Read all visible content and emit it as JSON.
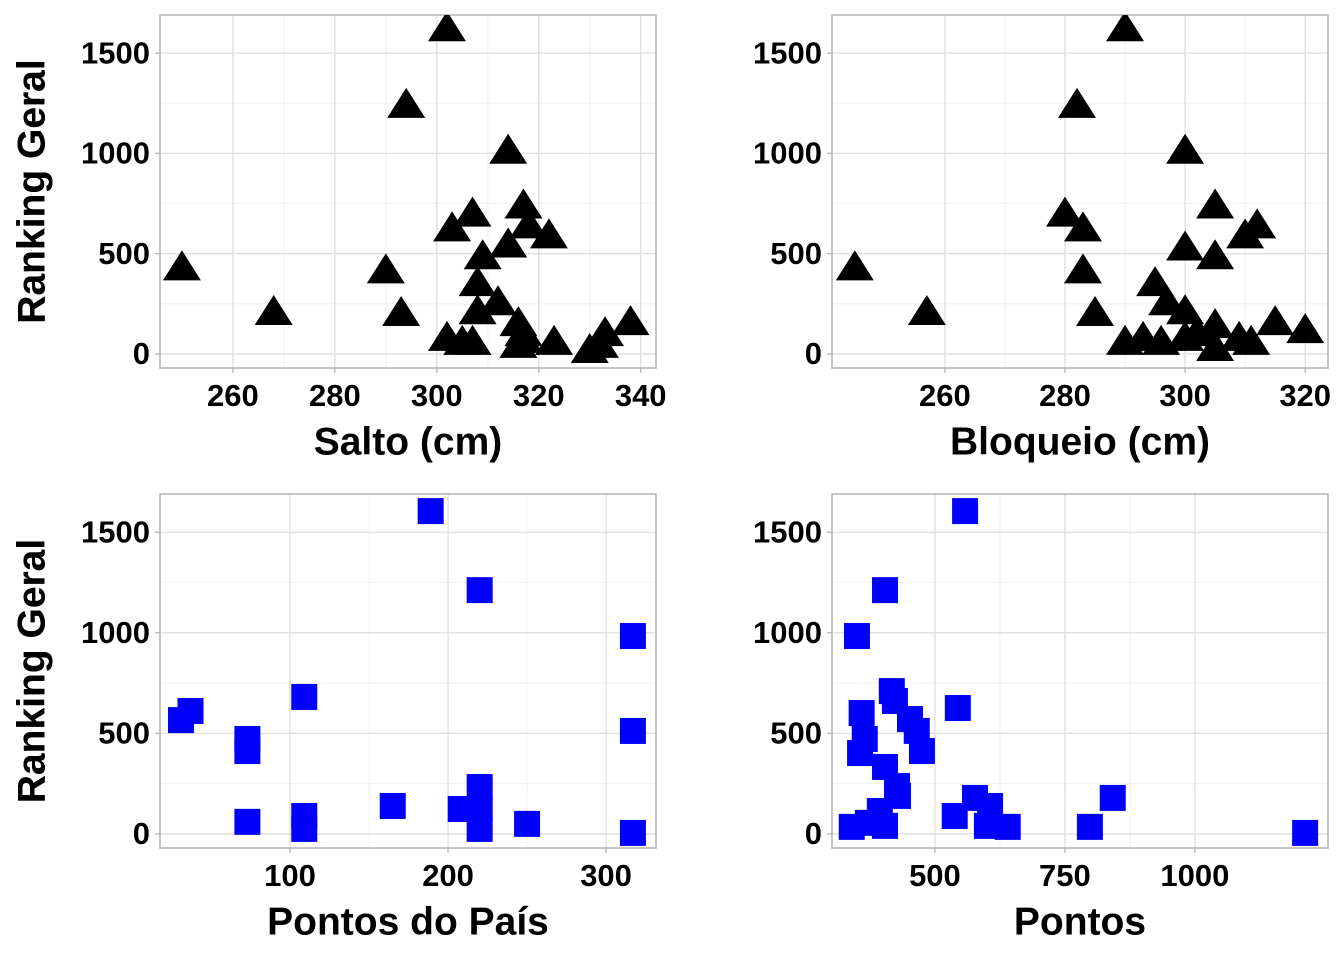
{
  "chart_data": [
    {
      "type": "scatter",
      "x_label": "Salto (cm)",
      "y_label": "Ranking Geral",
      "color": "#000000",
      "marker": "triangle",
      "grid": true,
      "xlim": [
        245.7,
        343
      ],
      "ylim": [
        -70,
        1690
      ],
      "xticks": [
        260,
        280,
        300,
        320,
        340
      ],
      "yticks": [
        0,
        500,
        1000,
        1500
      ],
      "x": [
        250,
        268,
        302,
        294,
        290,
        293,
        314,
        307,
        303,
        309,
        314,
        317,
        318,
        322,
        308,
        308,
        312,
        302,
        305,
        307,
        316,
        317,
        316,
        323,
        330,
        332,
        333,
        338,
        317
      ],
      "y": [
        432,
        209,
        1624,
        1242,
        417,
        204,
        1013,
        700,
        626,
        487,
        546,
        740,
        641,
        591,
        353,
        213,
        258,
        80,
        60,
        60,
        154,
        104,
        45,
        60,
        20,
        45,
        104,
        159,
        70
      ]
    },
    {
      "type": "scatter",
      "x_label": "Bloqueio (cm)",
      "y_label": "Ranking Geral",
      "color": "#000000",
      "marker": "triangle",
      "grid": true,
      "xlim": [
        241.2,
        323.8
      ],
      "ylim": [
        -70,
        1690
      ],
      "xticks": [
        260,
        280,
        300,
        320
      ],
      "yticks": [
        0,
        500,
        1000,
        1500
      ],
      "x": [
        245,
        257,
        290,
        282,
        300,
        280,
        283,
        283,
        285,
        305,
        300,
        305,
        310,
        312,
        295,
        297,
        300,
        290,
        293,
        296,
        300,
        302,
        305,
        305,
        309,
        311,
        315,
        320
      ],
      "y": [
        432,
        209,
        1624,
        1242,
        1013,
        700,
        626,
        417,
        204,
        740,
        531,
        487,
        591,
        641,
        353,
        258,
        213,
        60,
        80,
        60,
        80,
        104,
        144,
        30,
        80,
        60,
        159,
        119
      ]
    },
    {
      "type": "scatter",
      "x_label": "Pontos do País",
      "y_label": "Ranking Geral",
      "color": "#0000ff",
      "marker": "square",
      "grid": true,
      "xlim": [
        17.7,
        331.6
      ],
      "ylim": [
        -70,
        1690
      ],
      "xticks": [
        100,
        200,
        300
      ],
      "yticks": [
        0,
        500,
        1000,
        1500
      ],
      "x": [
        189,
        220,
        317,
        109,
        37,
        31,
        73,
        73,
        317,
        220,
        165,
        208,
        220,
        109,
        109,
        73,
        220,
        250,
        317
      ],
      "y": [
        1605,
        1212,
        984,
        681,
        611,
        566,
        472,
        412,
        512,
        233,
        139,
        124,
        124,
        89,
        25,
        60,
        25,
        50,
        5
      ]
    },
    {
      "type": "scatter",
      "x_label": "Pontos",
      "y_label": "Ranking Geral",
      "color": "#0000ff",
      "marker": "square",
      "grid": true,
      "xlim": [
        302,
        1256
      ],
      "ylim": [
        -70,
        1690
      ],
      "xticks": [
        500,
        750,
        1000
      ],
      "yticks": [
        0,
        500,
        1000,
        1500
      ],
      "x": [
        558,
        404,
        350,
        417,
        423,
        544,
        359,
        452,
        465,
        365,
        356,
        475,
        404,
        427,
        429,
        577,
        606,
        842,
        394,
        538,
        600,
        640,
        371,
        404,
        340,
        798,
        1212
      ],
      "y": [
        1605,
        1212,
        984,
        710,
        661,
        626,
        601,
        571,
        512,
        472,
        402,
        412,
        333,
        238,
        189,
        179,
        139,
        179,
        114,
        89,
        40,
        35,
        55,
        40,
        35,
        35,
        5
      ]
    }
  ]
}
